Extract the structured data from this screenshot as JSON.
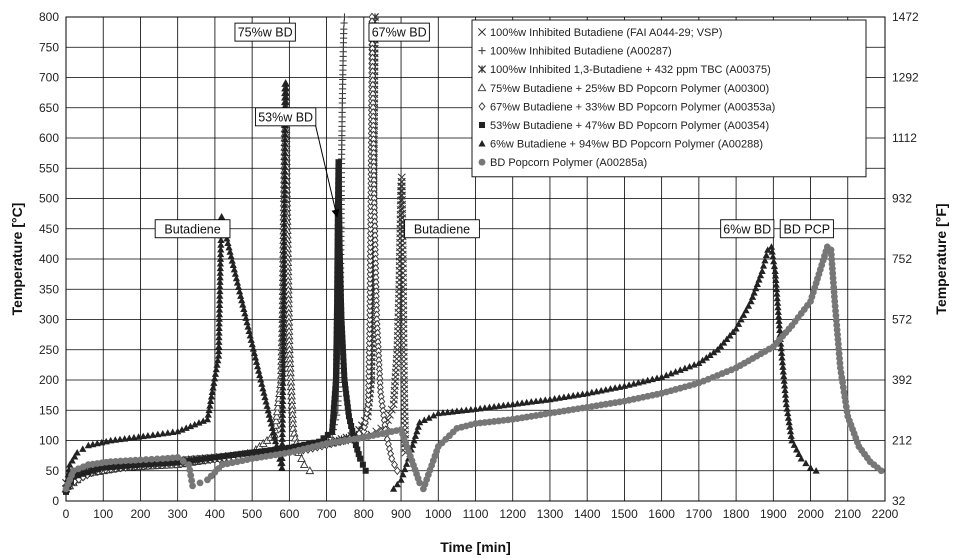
{
  "chart_data": {
    "type": "scatter",
    "xlabel": "Time [min]",
    "ylabel": "Temperature [°C]",
    "y2label": "Temperature [°F]",
    "xlim": [
      0,
      2200
    ],
    "ylim": [
      0,
      800
    ],
    "x_ticks": [
      0,
      100,
      200,
      300,
      400,
      500,
      600,
      700,
      800,
      900,
      1000,
      1100,
      1200,
      1300,
      1400,
      1500,
      1600,
      1700,
      1800,
      1900,
      2000,
      2100,
      2200
    ],
    "y_ticks": [
      0,
      50,
      100,
      150,
      200,
      250,
      300,
      350,
      400,
      450,
      500,
      550,
      600,
      650,
      700,
      750,
      800
    ],
    "y2_ticks": [
      32,
      212,
      392,
      572,
      752,
      932,
      1112,
      1292,
      1472
    ],
    "grid": true,
    "legend_position": "top-right",
    "series": [
      {
        "name": "100%w Inhibited Butadiene (FAI A044-29; VSP)",
        "marker": "x",
        "color": "#333333",
        "points": [
          [
            0,
            20
          ],
          [
            30,
            40
          ],
          [
            80,
            52
          ],
          [
            150,
            57
          ],
          [
            250,
            62
          ],
          [
            350,
            68
          ],
          [
            450,
            75
          ],
          [
            550,
            82
          ],
          [
            650,
            90
          ],
          [
            750,
            100
          ],
          [
            820,
            110
          ],
          [
            860,
            125
          ],
          [
            880,
            160
          ],
          [
            890,
            250
          ],
          [
            895,
            350
          ],
          [
            898,
            450
          ],
          [
            900,
            520
          ],
          [
            902,
            535
          ],
          [
            905,
            400
          ],
          [
            908,
            200
          ],
          [
            912,
            80
          ]
        ]
      },
      {
        "name": "100%w Inhibited Butadiene (A00287)",
        "marker": "+",
        "color": "#333333",
        "points": [
          [
            0,
            25
          ],
          [
            60,
            45
          ],
          [
            150,
            55
          ],
          [
            250,
            60
          ],
          [
            350,
            65
          ],
          [
            450,
            72
          ],
          [
            550,
            80
          ],
          [
            620,
            85
          ],
          [
            680,
            95
          ],
          [
            715,
            110
          ],
          [
            730,
            150
          ],
          [
            735,
            250
          ],
          [
            738,
            400
          ],
          [
            740,
            550
          ],
          [
            742,
            650
          ],
          [
            744,
            720
          ],
          [
            746,
            780
          ],
          [
            748,
            800
          ]
        ]
      },
      {
        "name": "100%w Inhibited 1,3-Butadiene + 432 ppm TBC (A00375)",
        "marker": "asterisk",
        "color": "#333333",
        "points": [
          [
            0,
            30
          ],
          [
            40,
            50
          ],
          [
            100,
            58
          ],
          [
            200,
            62
          ],
          [
            300,
            67
          ],
          [
            400,
            72
          ],
          [
            500,
            78
          ],
          [
            600,
            85
          ],
          [
            700,
            95
          ],
          [
            780,
            110
          ],
          [
            810,
            140
          ],
          [
            820,
            200
          ],
          [
            824,
            350
          ],
          [
            826,
            500
          ],
          [
            828,
            650
          ],
          [
            830,
            800
          ]
        ]
      },
      {
        "name": "75%w Butadiene + 25%w BD Popcorn Polymer (A00300)",
        "marker": "triangle-open",
        "color": "#333333",
        "points": [
          [
            0,
            20
          ],
          [
            50,
            45
          ],
          [
            150,
            55
          ],
          [
            300,
            60
          ],
          [
            400,
            70
          ],
          [
            500,
            80
          ],
          [
            560,
            110
          ],
          [
            578,
            200
          ],
          [
            582,
            300
          ],
          [
            584,
            400
          ],
          [
            586,
            500
          ],
          [
            588,
            600
          ],
          [
            590,
            690
          ],
          [
            593,
            500
          ],
          [
            600,
            250
          ],
          [
            610,
            120
          ],
          [
            625,
            80
          ],
          [
            640,
            60
          ],
          [
            655,
            50
          ]
        ]
      },
      {
        "name": "67%w Butadiene + 33%w BD Popcorn Polymer (A00353a)",
        "marker": "diamond-open",
        "color": "#333333",
        "points": [
          [
            0,
            25
          ],
          [
            80,
            50
          ],
          [
            200,
            58
          ],
          [
            350,
            66
          ],
          [
            500,
            74
          ],
          [
            650,
            85
          ],
          [
            750,
            100
          ],
          [
            800,
            115
          ],
          [
            812,
            160
          ],
          [
            816,
            300
          ],
          [
            818,
            450
          ],
          [
            820,
            600
          ],
          [
            822,
            800
          ],
          [
            828,
            500
          ],
          [
            835,
            300
          ],
          [
            845,
            180
          ],
          [
            860,
            110
          ],
          [
            875,
            70
          ],
          [
            890,
            50
          ]
        ]
      },
      {
        "name": "53%w Butadiene + 47%w BD Popcorn Polymer (A00354)",
        "marker": "square",
        "color": "#222222",
        "points": [
          [
            0,
            15
          ],
          [
            20,
            40
          ],
          [
            100,
            55
          ],
          [
            200,
            60
          ],
          [
            300,
            64
          ],
          [
            400,
            72
          ],
          [
            500,
            80
          ],
          [
            600,
            88
          ],
          [
            680,
            98
          ],
          [
            715,
            115
          ],
          [
            725,
            200
          ],
          [
            728,
            320
          ],
          [
            730,
            460
          ],
          [
            732,
            560
          ],
          [
            735,
            420
          ],
          [
            740,
            300
          ],
          [
            748,
            200
          ],
          [
            760,
            140
          ],
          [
            775,
            100
          ],
          [
            790,
            70
          ],
          [
            805,
            50
          ]
        ]
      },
      {
        "name": "6%w Butadiene + 94%w BD Popcorn Polymer (A00288)",
        "marker": "triangle",
        "color": "#222222",
        "points": [
          [
            0,
            20
          ],
          [
            10,
            60
          ],
          [
            30,
            80
          ],
          [
            60,
            92
          ],
          [
            120,
            100
          ],
          [
            220,
            108
          ],
          [
            300,
            115
          ],
          [
            380,
            135
          ],
          [
            410,
            240
          ],
          [
            415,
            400
          ],
          [
            418,
            470
          ],
          [
            580,
            55
          ],
          [
            582,
            150
          ],
          [
            584,
            300
          ],
          [
            586,
            450
          ],
          [
            588,
            560
          ],
          [
            590,
            690
          ],
          [
            880,
            20
          ],
          [
            900,
            35
          ],
          [
            920,
            70
          ],
          [
            950,
            130
          ],
          [
            1000,
            145
          ],
          [
            1100,
            152
          ],
          [
            1200,
            160
          ],
          [
            1300,
            168
          ],
          [
            1400,
            178
          ],
          [
            1500,
            190
          ],
          [
            1600,
            205
          ],
          [
            1700,
            228
          ],
          [
            1750,
            250
          ],
          [
            1800,
            285
          ],
          [
            1840,
            330
          ],
          [
            1870,
            380
          ],
          [
            1885,
            415
          ],
          [
            1895,
            420
          ],
          [
            1905,
            380
          ],
          [
            1920,
            260
          ],
          [
            1935,
            160
          ],
          [
            1950,
            100
          ],
          [
            1975,
            70
          ],
          [
            2000,
            55
          ],
          [
            2015,
            50
          ]
        ]
      },
      {
        "name": "BD Popcorn Polymer (A00285a)",
        "marker": "circle",
        "color": "#777777",
        "points": [
          [
            0,
            20
          ],
          [
            20,
            50
          ],
          [
            60,
            60
          ],
          [
            120,
            65
          ],
          [
            200,
            68
          ],
          [
            260,
            70
          ],
          [
            300,
            72
          ],
          [
            330,
            60
          ],
          [
            340,
            25
          ],
          [
            360,
            30
          ],
          [
            380,
            35
          ],
          [
            420,
            60
          ],
          [
            500,
            70
          ],
          [
            600,
            80
          ],
          [
            700,
            95
          ],
          [
            800,
            105
          ],
          [
            900,
            118
          ],
          [
            950,
            30
          ],
          [
            960,
            20
          ],
          [
            1000,
            90
          ],
          [
            1050,
            120
          ],
          [
            1100,
            128
          ],
          [
            1200,
            135
          ],
          [
            1300,
            145
          ],
          [
            1400,
            155
          ],
          [
            1500,
            165
          ],
          [
            1600,
            178
          ],
          [
            1700,
            195
          ],
          [
            1800,
            220
          ],
          [
            1900,
            255
          ],
          [
            1950,
            290
          ],
          [
            2000,
            330
          ],
          [
            2030,
            390
          ],
          [
            2045,
            420
          ],
          [
            2055,
            415
          ],
          [
            2065,
            330
          ],
          [
            2080,
            220
          ],
          [
            2100,
            140
          ],
          [
            2130,
            90
          ],
          [
            2160,
            65
          ],
          [
            2190,
            50
          ]
        ]
      }
    ],
    "annotations": [
      {
        "text": "Butadiene",
        "x": 340,
        "y": 450
      },
      {
        "text": "75%w BD",
        "x": 535,
        "y": 775
      },
      {
        "text": "53%w BD",
        "x": 590,
        "y": 635
      },
      {
        "text": "67%w BD",
        "x": 895,
        "y": 775
      },
      {
        "text": "Butadiene",
        "x": 1010,
        "y": 450
      },
      {
        "text": "6%w BD",
        "x": 1830,
        "y": 450
      },
      {
        "text": "BD PCP",
        "x": 1990,
        "y": 450
      }
    ]
  }
}
